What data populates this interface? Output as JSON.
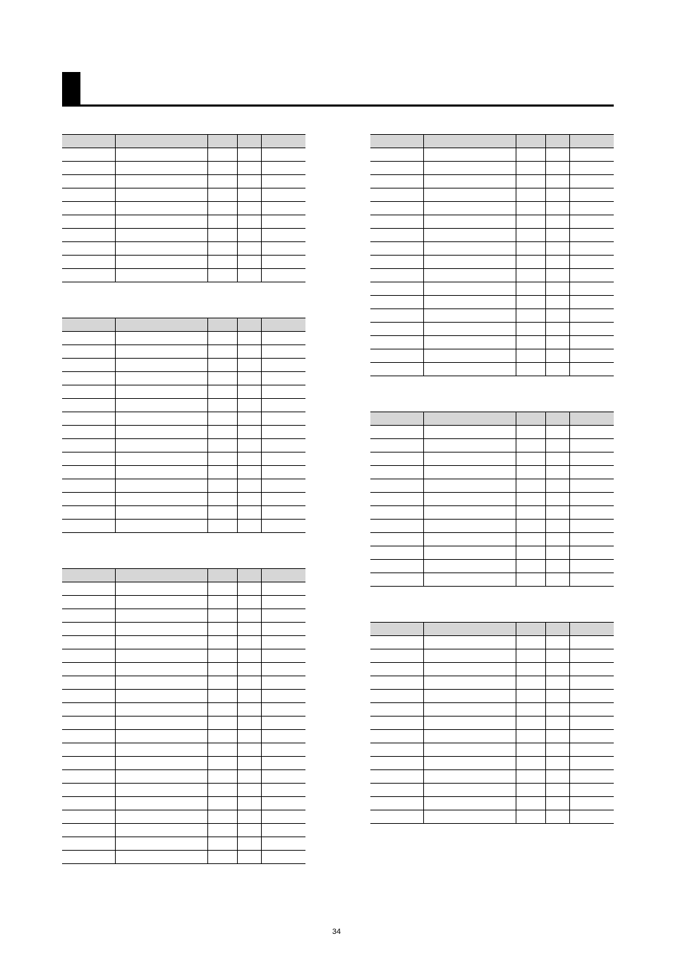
{
  "page_number": "34",
  "layout": {
    "header_rule_color": "#000000",
    "header_block_color": "#000000",
    "table_header_bg": "#d6d6d6",
    "table_border_color": "#000000",
    "column_widths_pct": [
      22,
      38,
      12,
      10,
      18
    ]
  },
  "left_tables": [
    {
      "rows": 10
    },
    {
      "rows": 15
    },
    {
      "rows": 21
    }
  ],
  "right_tables": [
    {
      "rows": 17
    },
    {
      "rows": 12
    },
    {
      "rows": 14
    }
  ]
}
